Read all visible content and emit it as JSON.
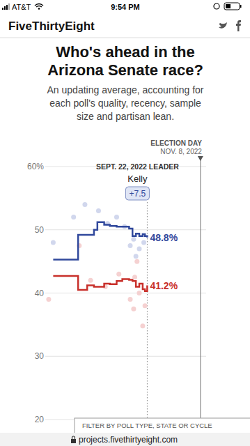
{
  "page": {
    "carrier": "AT&T",
    "time": "9:54 PM",
    "site": "FiveThirtyEight",
    "url": "projects.fivethirtyeight.com",
    "filter": "FILTER BY POLL TYPE, STATE OR CYCLE"
  },
  "chart_data": {
    "type": "line",
    "title": "Who's ahead in the Arizona Senate race?",
    "subtitle": "An updating average, accounting for each poll's quality, recency, sample size and partisan lean.",
    "x": [
      182,
      204,
      212,
      218,
      221,
      227,
      232,
      238,
      243,
      249,
      252,
      255,
      258,
      261,
      263,
      265
    ],
    "xlim": [
      175,
      317
    ],
    "ylim": [
      20,
      60
    ],
    "yticks": [
      20,
      30,
      40,
      50,
      {
        "value": 60,
        "label": "60%"
      }
    ],
    "grid": true,
    "tick_labels": "y",
    "series": [
      {
        "type": "line",
        "line_style": "step",
        "color": "#30489c",
        "values": [
          45.3,
          49.2,
          49.2,
          50.0,
          51.2,
          50.8,
          50.6,
          50.5,
          50.5,
          50.2,
          49.0,
          49.4,
          49.0,
          49.3,
          49.0,
          48.8
        ]
      },
      {
        "type": "line",
        "line_style": "step",
        "color": "#c8302b",
        "values": [
          42.7,
          40.5,
          41.2,
          41.0,
          41.0,
          41.5,
          41.4,
          41.9,
          42.2,
          42.1,
          41.9,
          41.0,
          41.5,
          40.6,
          40.3,
          41.2
        ]
      },
      {
        "type": "scatter",
        "marker": "circle",
        "color": "#c9d0ea",
        "x": [
          182,
          200,
          210,
          222,
          230,
          238,
          245,
          250,
          253,
          255,
          258,
          262
        ],
        "values": [
          48.0,
          52.0,
          54.0,
          53.0,
          51.0,
          52.0,
          50.5,
          47.5,
          48.5,
          45.8,
          47.0,
          48.0
        ]
      },
      {
        "type": "scatter",
        "marker": "circle",
        "color": "#f3c9c9",
        "x": [
          178,
          205,
          215,
          228,
          240,
          250,
          253,
          254,
          256,
          258,
          261,
          263
        ],
        "values": [
          39.0,
          47.5,
          42.0,
          41.0,
          43.0,
          39.0,
          37.5,
          42.5,
          45.0,
          40.0,
          34.8,
          38.0
        ]
      }
    ],
    "annotations": [
      {
        "text": "ELECTION DAY",
        "x": 312
      },
      {
        "text": "NOV. 8, 2022",
        "x": 312
      },
      {
        "text": "SEPT. 22, 2022 LEADER",
        "x": 265
      },
      {
        "text": "Kelly",
        "x": 265
      },
      {
        "text": "+7.5",
        "x": 265,
        "color": "#30489c"
      },
      {
        "text": "48.8%",
        "x": 265,
        "y": 48.8,
        "color": "#30489c"
      },
      {
        "text": "41.2%",
        "x": 265,
        "y": 41.2,
        "color": "#c8302b"
      }
    ]
  }
}
